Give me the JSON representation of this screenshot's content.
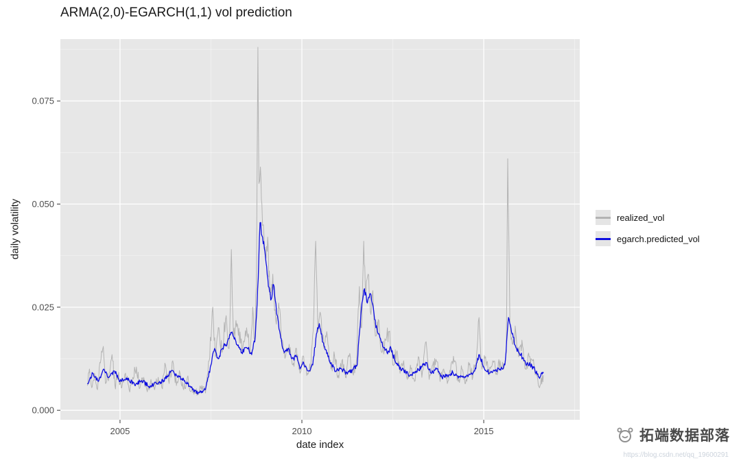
{
  "watermark": {
    "brand": "拓端数据部落",
    "url": "https://blog.csdn.net/qq_19600291"
  },
  "chart_data": {
    "type": "line",
    "title": "ARMA(2,0)-EGARCH(1,1) vol prediction",
    "xlabel": "date index",
    "ylabel": "daily volatility",
    "xlim": [
      2003.36,
      2017.64
    ],
    "ylim": [
      -0.0023,
      0.09
    ],
    "x_ticks": [
      2005,
      2010,
      2015
    ],
    "x_tick_labels": [
      "2005",
      "2010",
      "2015"
    ],
    "x_minor_ticks": [
      2007.5,
      2012.5,
      2017.5
    ],
    "y_ticks": [
      0,
      0.025,
      0.05,
      0.075
    ],
    "y_tick_labels": [
      "0.000",
      "0.025",
      "0.050",
      "0.075"
    ],
    "y_minor_ticks": [
      0.0125,
      0.0375,
      0.0625,
      0.0875
    ],
    "grid": true,
    "panel_bg": "#e7e7e7",
    "legend_position": "right",
    "series": [
      {
        "name": "realized_vol",
        "color": "#b3b3b3",
        "jitter": 0.0016,
        "anchors": [
          [
            2004.1,
            0.006
          ],
          [
            2004.16,
            0.01
          ],
          [
            2004.22,
            0.0055
          ],
          [
            2004.3,
            0.009
          ],
          [
            2004.38,
            0.005
          ],
          [
            2004.46,
            0.0115
          ],
          [
            2004.54,
            0.0155
          ],
          [
            2004.6,
            0.0065
          ],
          [
            2004.7,
            0.009
          ],
          [
            2004.78,
            0.0135
          ],
          [
            2004.86,
            0.006
          ],
          [
            2004.95,
            0.0085
          ],
          [
            2005.05,
            0.0055
          ],
          [
            2005.15,
            0.009
          ],
          [
            2005.25,
            0.005
          ],
          [
            2005.35,
            0.008
          ],
          [
            2005.45,
            0.0105
          ],
          [
            2005.55,
            0.0055
          ],
          [
            2005.65,
            0.008
          ],
          [
            2005.75,
            0.0045
          ],
          [
            2005.85,
            0.0075
          ],
          [
            2005.95,
            0.005
          ],
          [
            2006.05,
            0.008
          ],
          [
            2006.15,
            0.0055
          ],
          [
            2006.25,
            0.011
          ],
          [
            2006.35,
            0.0065
          ],
          [
            2006.45,
            0.012
          ],
          [
            2006.55,
            0.006
          ],
          [
            2006.65,
            0.009
          ],
          [
            2006.75,
            0.005
          ],
          [
            2006.85,
            0.008
          ],
          [
            2006.95,
            0.0045
          ],
          [
            2007.05,
            0.005
          ],
          [
            2007.15,
            0.0038
          ],
          [
            2007.25,
            0.006
          ],
          [
            2007.35,
            0.0042
          ],
          [
            2007.45,
            0.012
          ],
          [
            2007.55,
            0.025
          ],
          [
            2007.62,
            0.013
          ],
          [
            2007.72,
            0.02
          ],
          [
            2007.8,
            0.014
          ],
          [
            2007.9,
            0.022
          ],
          [
            2008.0,
            0.015
          ],
          [
            2008.06,
            0.039
          ],
          [
            2008.12,
            0.018
          ],
          [
            2008.22,
            0.021
          ],
          [
            2008.35,
            0.015
          ],
          [
            2008.48,
            0.02
          ],
          [
            2008.58,
            0.014
          ],
          [
            2008.65,
            0.025
          ],
          [
            2008.7,
            0.017
          ],
          [
            2008.75,
            0.03
          ],
          [
            2008.79,
            0.088
          ],
          [
            2008.82,
            0.055
          ],
          [
            2008.86,
            0.059
          ],
          [
            2008.9,
            0.05
          ],
          [
            2008.94,
            0.045
          ],
          [
            2009.0,
            0.038
          ],
          [
            2009.06,
            0.042
          ],
          [
            2009.12,
            0.028
          ],
          [
            2009.2,
            0.033
          ],
          [
            2009.28,
            0.022
          ],
          [
            2009.36,
            0.026
          ],
          [
            2009.45,
            0.017
          ],
          [
            2009.55,
            0.013
          ],
          [
            2009.65,
            0.016
          ],
          [
            2009.75,
            0.011
          ],
          [
            2009.85,
            0.015
          ],
          [
            2009.95,
            0.009
          ],
          [
            2010.05,
            0.013
          ],
          [
            2010.15,
            0.009
          ],
          [
            2010.25,
            0.011
          ],
          [
            2010.33,
            0.024
          ],
          [
            2010.38,
            0.041
          ],
          [
            2010.45,
            0.019
          ],
          [
            2010.52,
            0.023
          ],
          [
            2010.6,
            0.015
          ],
          [
            2010.7,
            0.018
          ],
          [
            2010.8,
            0.01
          ],
          [
            2010.9,
            0.013
          ],
          [
            2011.0,
            0.0085
          ],
          [
            2011.1,
            0.012
          ],
          [
            2011.2,
            0.008
          ],
          [
            2011.3,
            0.013
          ],
          [
            2011.4,
            0.009
          ],
          [
            2011.5,
            0.012
          ],
          [
            2011.58,
            0.03
          ],
          [
            2011.64,
            0.02
          ],
          [
            2011.7,
            0.041
          ],
          [
            2011.76,
            0.028
          ],
          [
            2011.82,
            0.033
          ],
          [
            2011.88,
            0.024
          ],
          [
            2011.95,
            0.029
          ],
          [
            2012.02,
            0.018
          ],
          [
            2012.1,
            0.022
          ],
          [
            2012.2,
            0.014
          ],
          [
            2012.3,
            0.017
          ],
          [
            2012.4,
            0.019
          ],
          [
            2012.5,
            0.011
          ],
          [
            2012.6,
            0.014
          ],
          [
            2012.7,
            0.009
          ],
          [
            2012.8,
            0.012
          ],
          [
            2012.9,
            0.0075
          ],
          [
            2013.0,
            0.01
          ],
          [
            2013.1,
            0.007
          ],
          [
            2013.2,
            0.013
          ],
          [
            2013.3,
            0.008
          ],
          [
            2013.4,
            0.0165
          ],
          [
            2013.5,
            0.0075
          ],
          [
            2013.6,
            0.011
          ],
          [
            2013.7,
            0.012
          ],
          [
            2013.8,
            0.007
          ],
          [
            2013.9,
            0.01
          ],
          [
            2014.0,
            0.0065
          ],
          [
            2014.1,
            0.011
          ],
          [
            2014.2,
            0.012
          ],
          [
            2014.3,
            0.007
          ],
          [
            2014.4,
            0.01
          ],
          [
            2014.5,
            0.0065
          ],
          [
            2014.6,
            0.011
          ],
          [
            2014.7,
            0.008
          ],
          [
            2014.8,
            0.013
          ],
          [
            2014.87,
            0.0225
          ],
          [
            2014.95,
            0.01
          ],
          [
            2015.05,
            0.013
          ],
          [
            2015.15,
            0.0085
          ],
          [
            2015.25,
            0.012
          ],
          [
            2015.35,
            0.009
          ],
          [
            2015.45,
            0.012
          ],
          [
            2015.55,
            0.01
          ],
          [
            2015.62,
            0.014
          ],
          [
            2015.66,
            0.061
          ],
          [
            2015.72,
            0.021
          ],
          [
            2015.8,
            0.016
          ],
          [
            2015.88,
            0.019
          ],
          [
            2015.96,
            0.013
          ],
          [
            2016.05,
            0.017
          ],
          [
            2016.15,
            0.01
          ],
          [
            2016.25,
            0.013
          ],
          [
            2016.35,
            0.012
          ],
          [
            2016.45,
            0.0085
          ],
          [
            2016.55,
            0.006
          ],
          [
            2016.64,
            0.0085
          ]
        ]
      },
      {
        "name": "egarch.predicted_vol",
        "color": "#0d0de0",
        "jitter": 0.0006,
        "anchors": [
          [
            2004.1,
            0.0065
          ],
          [
            2004.25,
            0.009
          ],
          [
            2004.4,
            0.007
          ],
          [
            2004.55,
            0.01
          ],
          [
            2004.7,
            0.008
          ],
          [
            2004.85,
            0.0095
          ],
          [
            2005.0,
            0.007
          ],
          [
            2005.2,
            0.0078
          ],
          [
            2005.4,
            0.0062
          ],
          [
            2005.6,
            0.0072
          ],
          [
            2005.8,
            0.0058
          ],
          [
            2006.0,
            0.0065
          ],
          [
            2006.2,
            0.0072
          ],
          [
            2006.4,
            0.0095
          ],
          [
            2006.55,
            0.0085
          ],
          [
            2006.75,
            0.0075
          ],
          [
            2006.95,
            0.0055
          ],
          [
            2007.15,
            0.0042
          ],
          [
            2007.35,
            0.005
          ],
          [
            2007.5,
            0.011
          ],
          [
            2007.6,
            0.015
          ],
          [
            2007.7,
            0.0125
          ],
          [
            2007.82,
            0.015
          ],
          [
            2007.95,
            0.0165
          ],
          [
            2008.08,
            0.019
          ],
          [
            2008.2,
            0.016
          ],
          [
            2008.35,
            0.014
          ],
          [
            2008.5,
            0.015
          ],
          [
            2008.62,
            0.0135
          ],
          [
            2008.72,
            0.018
          ],
          [
            2008.8,
            0.032
          ],
          [
            2008.85,
            0.0455
          ],
          [
            2008.92,
            0.042
          ],
          [
            2009.0,
            0.037
          ],
          [
            2009.08,
            0.03
          ],
          [
            2009.16,
            0.027
          ],
          [
            2009.22,
            0.0305
          ],
          [
            2009.32,
            0.023
          ],
          [
            2009.42,
            0.0175
          ],
          [
            2009.52,
            0.014
          ],
          [
            2009.62,
            0.015
          ],
          [
            2009.72,
            0.0125
          ],
          [
            2009.85,
            0.013
          ],
          [
            2009.95,
            0.01
          ],
          [
            2010.05,
            0.0115
          ],
          [
            2010.18,
            0.0095
          ],
          [
            2010.3,
            0.011
          ],
          [
            2010.4,
            0.0185
          ],
          [
            2010.48,
            0.021
          ],
          [
            2010.58,
            0.0165
          ],
          [
            2010.7,
            0.014
          ],
          [
            2010.82,
            0.011
          ],
          [
            2010.95,
            0.0095
          ],
          [
            2011.1,
            0.01
          ],
          [
            2011.25,
            0.0088
          ],
          [
            2011.4,
            0.0098
          ],
          [
            2011.52,
            0.011
          ],
          [
            2011.62,
            0.023
          ],
          [
            2011.72,
            0.0295
          ],
          [
            2011.8,
            0.026
          ],
          [
            2011.9,
            0.028
          ],
          [
            2012.0,
            0.022
          ],
          [
            2012.1,
            0.0185
          ],
          [
            2012.22,
            0.0155
          ],
          [
            2012.34,
            0.014
          ],
          [
            2012.45,
            0.015
          ],
          [
            2012.58,
            0.0115
          ],
          [
            2012.72,
            0.01
          ],
          [
            2012.85,
            0.0092
          ],
          [
            2013.0,
            0.0085
          ],
          [
            2013.15,
            0.0095
          ],
          [
            2013.3,
            0.0105
          ],
          [
            2013.42,
            0.0115
          ],
          [
            2013.55,
            0.009
          ],
          [
            2013.7,
            0.01
          ],
          [
            2013.85,
            0.008
          ],
          [
            2014.0,
            0.0085
          ],
          [
            2014.15,
            0.0092
          ],
          [
            2014.3,
            0.0078
          ],
          [
            2014.45,
            0.0082
          ],
          [
            2014.6,
            0.0088
          ],
          [
            2014.75,
            0.0095
          ],
          [
            2014.88,
            0.0135
          ],
          [
            2015.0,
            0.0105
          ],
          [
            2015.15,
            0.009
          ],
          [
            2015.3,
            0.0095
          ],
          [
            2015.45,
            0.01
          ],
          [
            2015.58,
            0.011
          ],
          [
            2015.68,
            0.0225
          ],
          [
            2015.78,
            0.0185
          ],
          [
            2015.9,
            0.015
          ],
          [
            2016.02,
            0.0135
          ],
          [
            2016.15,
            0.0115
          ],
          [
            2016.28,
            0.011
          ],
          [
            2016.4,
            0.01
          ],
          [
            2016.52,
            0.008
          ],
          [
            2016.64,
            0.009
          ]
        ]
      }
    ]
  }
}
